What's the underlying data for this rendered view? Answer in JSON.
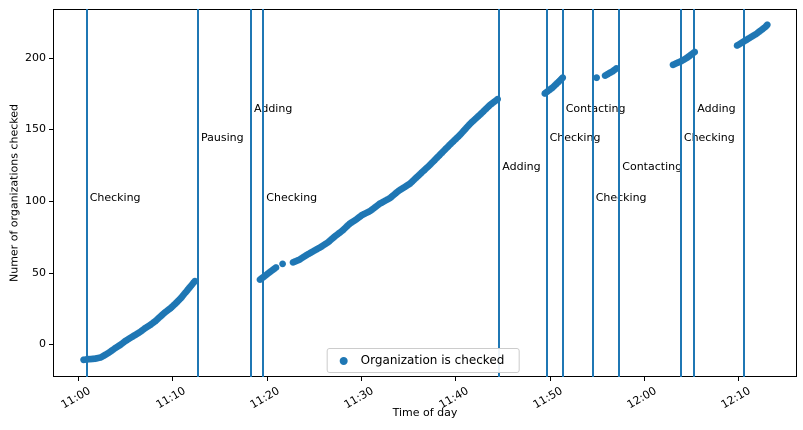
{
  "figure": {
    "background": "#ffffff",
    "spine_color": "#000000",
    "text_color": "#000000"
  },
  "chart_data": {
    "type": "scatter",
    "title": "",
    "xlabel": "Time of day",
    "ylabel": "Numer of organizations checked",
    "x_unit": "minutes after 11:00",
    "xlim_minutes": [
      -2.65,
      76.25
    ],
    "ylim": [
      -23,
      234
    ],
    "grid": false,
    "marker_color": "#1f77b4",
    "event_line_color": "#1f77b4",
    "xticks": [
      {
        "minutes": 0,
        "label": "11:00"
      },
      {
        "minutes": 10,
        "label": "11:10"
      },
      {
        "minutes": 20,
        "label": "11:20"
      },
      {
        "minutes": 30,
        "label": "11:30"
      },
      {
        "minutes": 40,
        "label": "11:40"
      },
      {
        "minutes": 50,
        "label": "11:50"
      },
      {
        "minutes": 60,
        "label": "12:00"
      },
      {
        "minutes": 70,
        "label": "12:10"
      }
    ],
    "yticks": [
      {
        "value": 0,
        "label": "0"
      },
      {
        "value": 50,
        "label": "50"
      },
      {
        "value": 100,
        "label": "100"
      },
      {
        "value": 150,
        "label": "150"
      },
      {
        "value": 200,
        "label": "200"
      }
    ],
    "legend": {
      "label": "Organization is checked",
      "marker_color": "#1f77b4",
      "position": "lower center"
    },
    "series": [
      {
        "name": "Organization is checked",
        "color": "#1f77b4",
        "segments": [
          {
            "name": "run-1",
            "points": [
              [
                0.6,
                -11
              ],
              [
                1.1,
                -10.6
              ],
              [
                1.8,
                -10.2
              ],
              [
                2.4,
                -9.4
              ],
              [
                2.9,
                -7.5
              ],
              [
                3.4,
                -5.5
              ],
              [
                3.9,
                -3
              ],
              [
                4.5,
                -0.5
              ],
              [
                5.0,
                2
              ],
              [
                5.6,
                4.5
              ],
              [
                6.1,
                6.5
              ],
              [
                6.6,
                8.5
              ],
              [
                7.1,
                11
              ],
              [
                7.7,
                13.5
              ],
              [
                8.2,
                16
              ],
              [
                8.7,
                19
              ],
              [
                9.2,
                22
              ],
              [
                9.8,
                25
              ],
              [
                10.3,
                28
              ],
              [
                10.9,
                32
              ],
              [
                11.4,
                36
              ],
              [
                11.9,
                40
              ],
              [
                12.4,
                44
              ]
            ]
          },
          {
            "name": "run-2",
            "points": [
              [
                19.3,
                45
              ],
              [
                19.7,
                47
              ],
              [
                20.1,
                49
              ],
              [
                20.5,
                51
              ],
              [
                21.0,
                53.5
              ]
            ]
          },
          {
            "name": "run-3",
            "points": [
              [
                21.7,
                56
              ]
            ]
          },
          {
            "name": "run-4",
            "points": [
              [
                22.8,
                57
              ],
              [
                23.5,
                59
              ],
              [
                24.2,
                62
              ],
              [
                25.0,
                65
              ],
              [
                25.8,
                68
              ],
              [
                26.5,
                71
              ],
              [
                27.2,
                75
              ],
              [
                28.0,
                79
              ],
              [
                28.8,
                84
              ],
              [
                29.5,
                87
              ],
              [
                30.1,
                90
              ],
              [
                31.0,
                93
              ],
              [
                32.0,
                98
              ],
              [
                33.1,
                102
              ],
              [
                34.0,
                107
              ],
              [
                35.2,
                112
              ],
              [
                36.0,
                117
              ],
              [
                37.3,
                125
              ],
              [
                38.2,
                131
              ],
              [
                39.4,
                139
              ],
              [
                40.5,
                146
              ],
              [
                41.6,
                154
              ],
              [
                42.6,
                160
              ],
              [
                43.7,
                167
              ],
              [
                44.5,
                171
              ]
            ]
          },
          {
            "name": "run-5",
            "points": [
              [
                49.5,
                175
              ],
              [
                49.9,
                177
              ],
              [
                50.3,
                179
              ],
              [
                50.7,
                181.5
              ],
              [
                51.1,
                184
              ],
              [
                51.4,
                186
              ]
            ]
          },
          {
            "name": "run-6",
            "points": [
              [
                55.0,
                186
              ]
            ]
          },
          {
            "name": "run-7",
            "points": [
              [
                55.9,
                187.5
              ],
              [
                56.3,
                189
              ],
              [
                56.7,
                190.5
              ],
              [
                57.1,
                192.5
              ]
            ]
          },
          {
            "name": "run-8",
            "points": [
              [
                63.1,
                195
              ],
              [
                63.6,
                196.5
              ],
              [
                64.1,
                198
              ],
              [
                64.6,
                200
              ],
              [
                65.0,
                202
              ],
              [
                65.4,
                204
              ]
            ]
          },
          {
            "name": "run-9",
            "points": [
              [
                69.9,
                208.5
              ],
              [
                70.4,
                210.5
              ],
              [
                70.9,
                212.5
              ],
              [
                71.4,
                214.5
              ],
              [
                71.9,
                216.5
              ],
              [
                72.4,
                219
              ],
              [
                72.9,
                221.5
              ],
              [
                73.1,
                223
              ]
            ]
          }
        ]
      }
    ],
    "events": [
      {
        "minutes": 0.92,
        "label": "Checking",
        "label_y": 102
      },
      {
        "minutes": 12.73,
        "label": "Pausing",
        "label_y": 144
      },
      {
        "minutes": 18.35,
        "label": "Adding",
        "label_y": 164
      },
      {
        "minutes": 19.65,
        "label": "Checking",
        "label_y": 102
      },
      {
        "minutes": 44.68,
        "label": "Adding",
        "label_y": 124
      },
      {
        "minutes": 49.7,
        "label": "Checking",
        "label_y": 144
      },
      {
        "minutes": 51.4,
        "label": "Contacting",
        "label_y": 164
      },
      {
        "minutes": 54.58,
        "label": "Checking",
        "label_y": 102
      },
      {
        "minutes": 57.4,
        "label": "Contacting",
        "label_y": 124
      },
      {
        "minutes": 63.94,
        "label": "Checking",
        "label_y": 144
      },
      {
        "minutes": 65.36,
        "label": "Adding",
        "label_y": 164
      },
      {
        "minutes": 70.66,
        "label": "",
        "label_y": null
      }
    ]
  }
}
